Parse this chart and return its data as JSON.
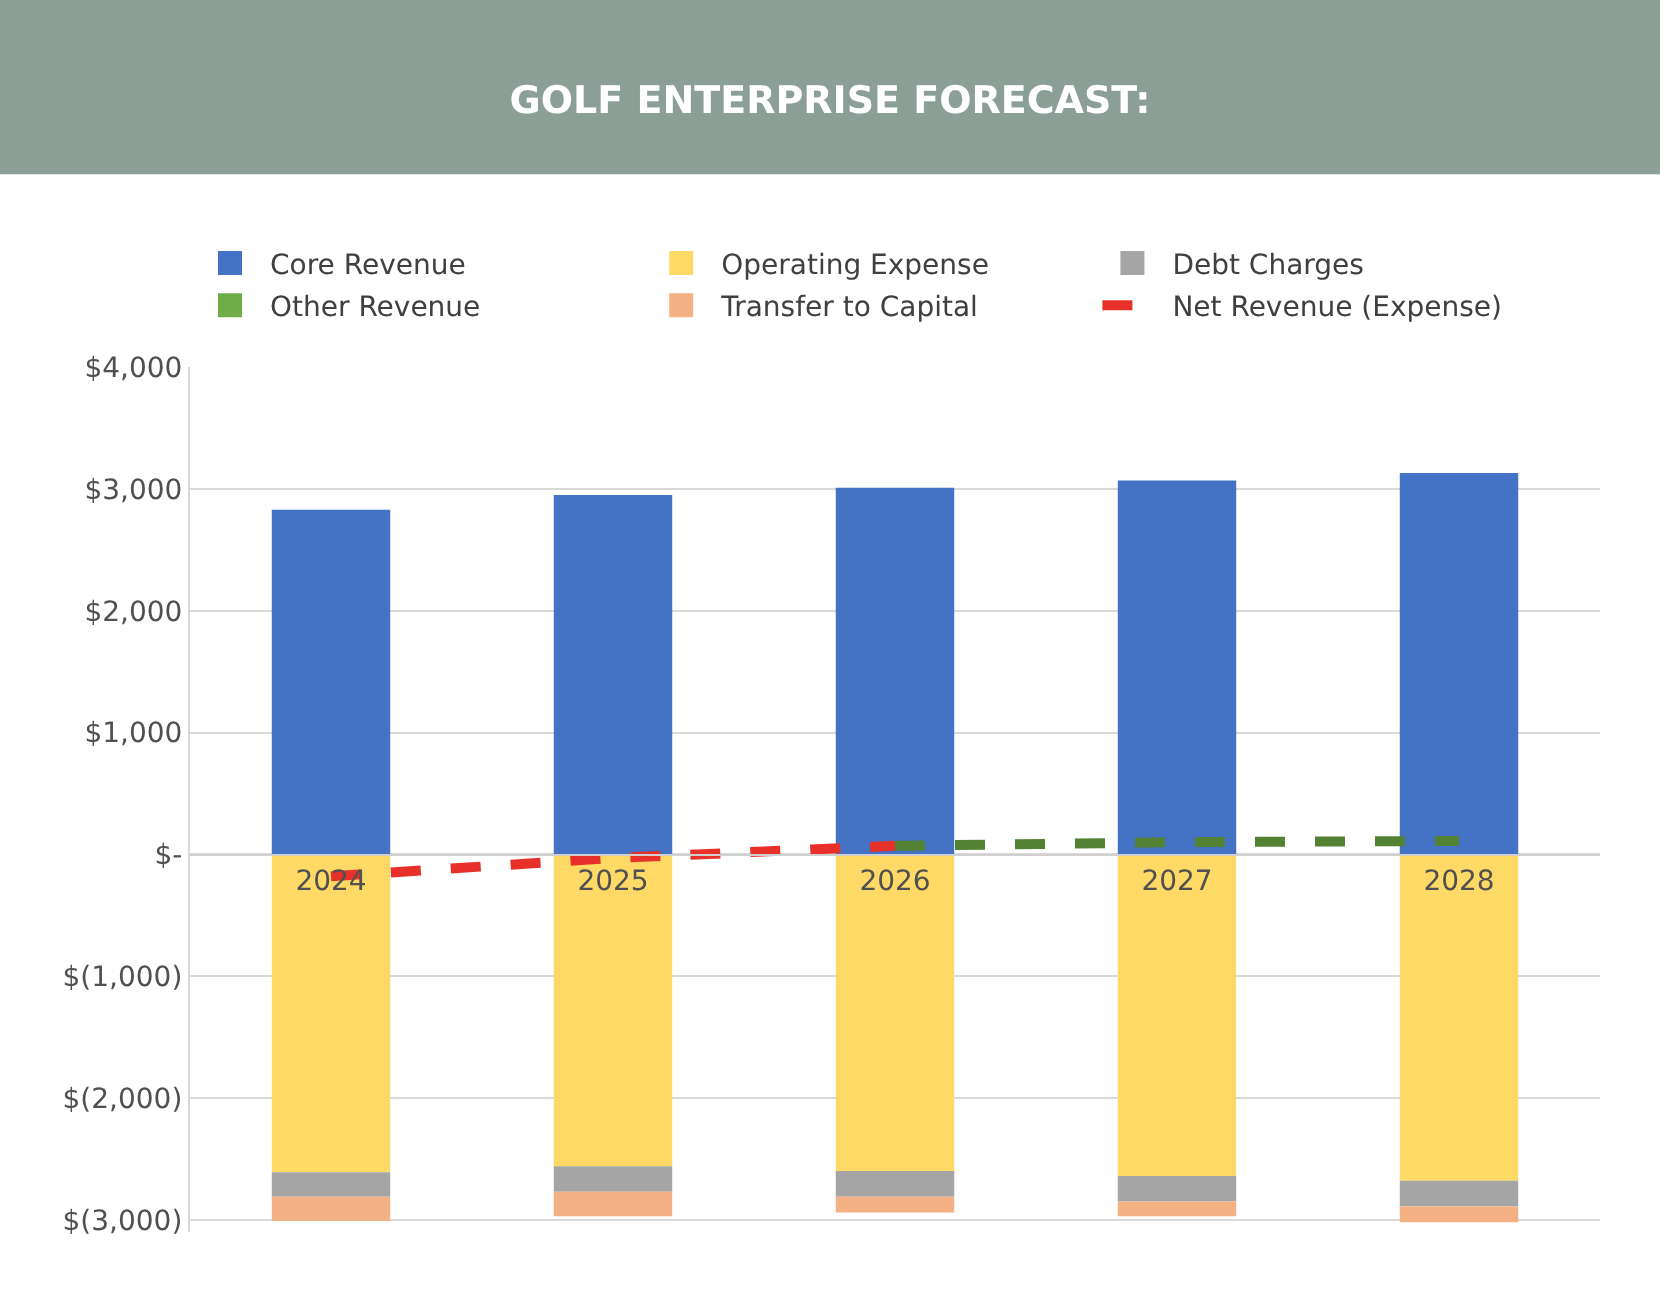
{
  "chart_data": {
    "type": "bar",
    "title": "GOLF ENTERPRISE FORECAST:",
    "stacked": true,
    "categories": [
      "2024",
      "2025",
      "2026",
      "2027",
      "2028"
    ],
    "series": [
      {
        "name": "Core Revenue",
        "color": "#4472c4",
        "values": [
          2830,
          2950,
          3010,
          3070,
          3130
        ]
      },
      {
        "name": "Operating Expense",
        "color": "#ffd966",
        "values": [
          -2610,
          -2560,
          -2600,
          -2640,
          -2680
        ]
      },
      {
        "name": "Debt Charges",
        "color": "#a5a5a5",
        "values": [
          -200,
          -210,
          -210,
          -210,
          -210
        ]
      },
      {
        "name": "Other Revenue",
        "color": "#70ad47",
        "values": [
          null,
          null,
          null,
          null,
          null
        ]
      },
      {
        "name": "Transfer to Capital",
        "color": "#f4b183",
        "values": [
          -200,
          -200,
          -130,
          -120,
          -130
        ]
      },
      {
        "name": "Net Revenue (Expense)",
        "type": "line",
        "color": "#e8302a",
        "line_style": "dashed",
        "values": [
          -180,
          -30,
          70,
          null,
          null
        ]
      },
      {
        "type": "line",
        "color": "#548235",
        "line_style": "dashed",
        "values": [
          null,
          null,
          70,
          100,
          110
        ]
      }
    ],
    "ylim": [
      -3100,
      4000
    ],
    "yticks": [
      {
        "value": 4000,
        "label": "$4,000"
      },
      {
        "value": 3000,
        "label": "$3,000"
      },
      {
        "value": 2000,
        "label": "$2,000"
      },
      {
        "value": 1000,
        "label": "$1,000"
      },
      {
        "value": 0,
        "label": "$-"
      },
      {
        "value": -1000,
        "label": "$(1,000)"
      },
      {
        "value": -2000,
        "label": "$(2,000)"
      },
      {
        "value": -3000,
        "label": "$(3,000)"
      }
    ],
    "grid": "y",
    "legend": "top",
    "marker": "none"
  }
}
